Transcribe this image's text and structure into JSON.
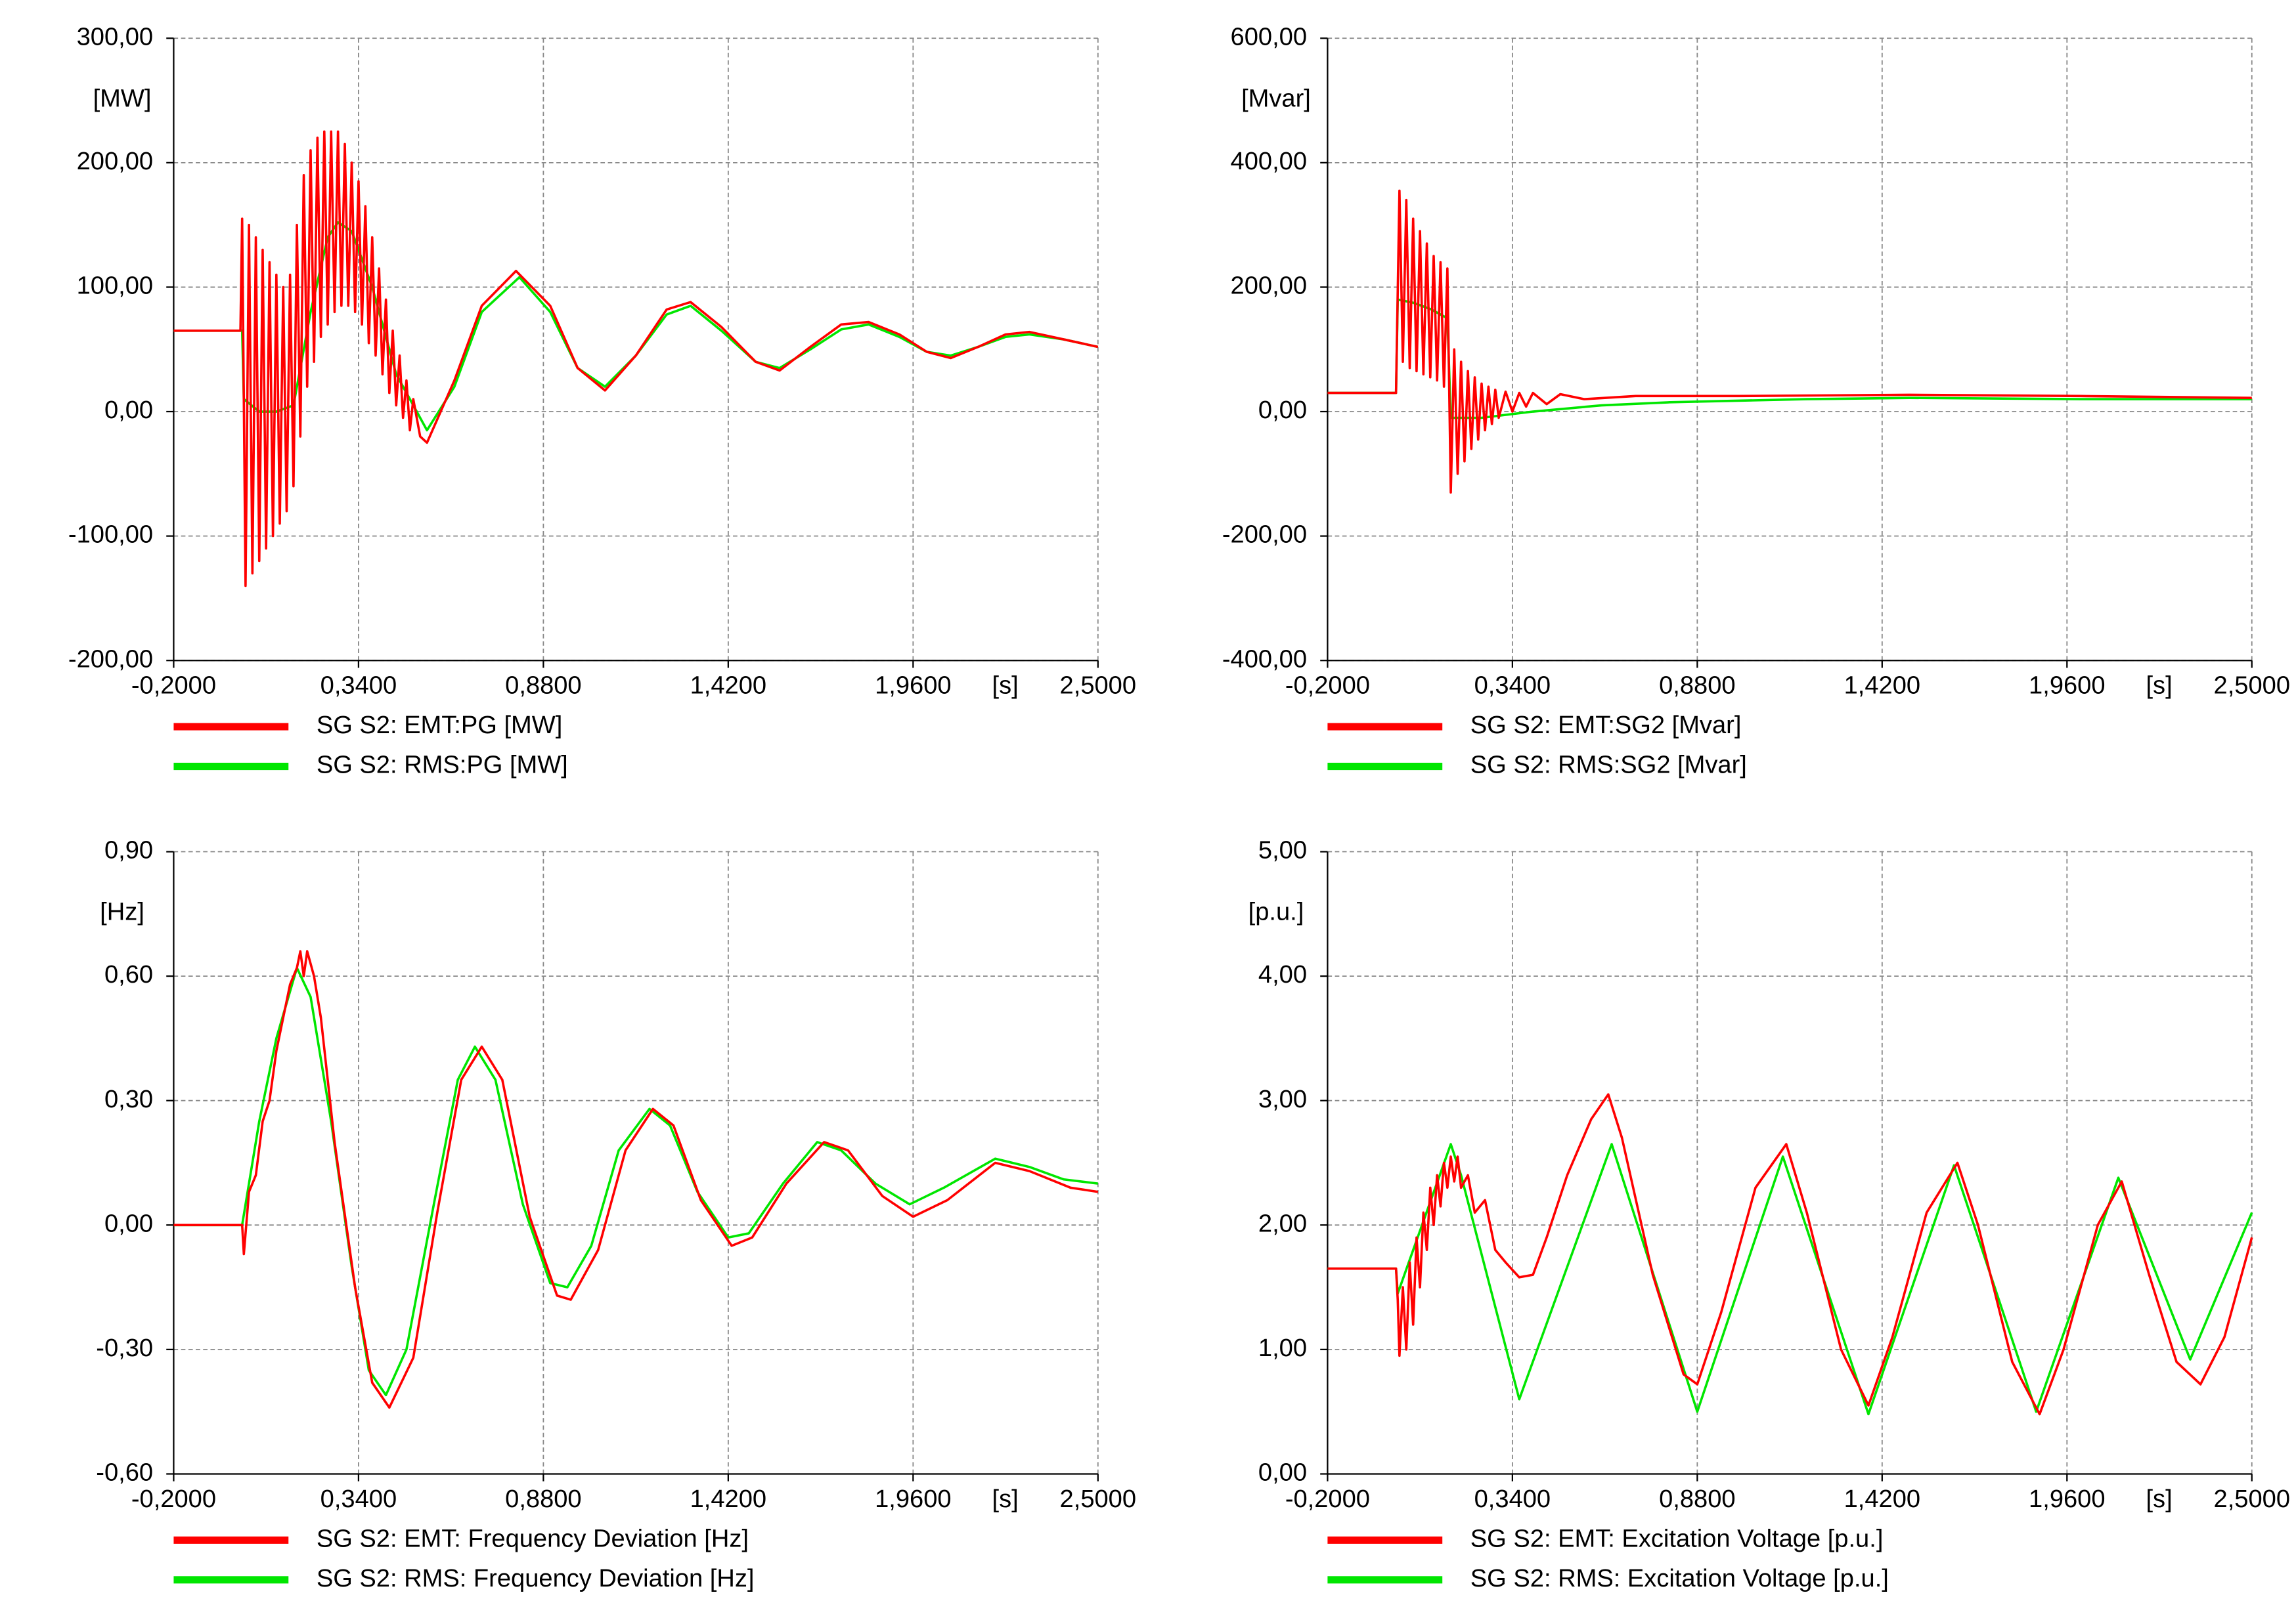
{
  "chart_data": [
    {
      "type": "line",
      "y_label": "[MW]",
      "x_label": "[s]",
      "xlim": [
        -0.2,
        2.5
      ],
      "xticks": [
        {
          "value": -0.2,
          "label": "-0,2000"
        },
        {
          "value": 0.34,
          "label": "0,3400"
        },
        {
          "value": 0.88,
          "label": "0,8800"
        },
        {
          "value": 1.42,
          "label": "1,4200"
        },
        {
          "value": 1.96,
          "label": "1,9600"
        },
        {
          "value": 2.5,
          "label": "2,5000"
        }
      ],
      "ylim": [
        -200,
        300
      ],
      "yticks": [
        {
          "value": -200,
          "label": "-200,00"
        },
        {
          "value": -100,
          "label": "-100,00"
        },
        {
          "value": 0,
          "label": "0,00"
        },
        {
          "value": 100,
          "label": "100,00"
        },
        {
          "value": 200,
          "label": "200,00"
        },
        {
          "value": 300,
          "label": "300,00"
        }
      ],
      "grid": true,
      "legend": "below",
      "series": [
        {
          "name": "SG S2: EMT:PG [MW]",
          "color": "#ff0000",
          "x": [
            -0.2,
            -0.005,
            0.0,
            0.01,
            0.02,
            0.03,
            0.04,
            0.05,
            0.06,
            0.07,
            0.08,
            0.09,
            0.1,
            0.11,
            0.12,
            0.13,
            0.14,
            0.15,
            0.16,
            0.17,
            0.18,
            0.19,
            0.2,
            0.21,
            0.22,
            0.23,
            0.24,
            0.25,
            0.26,
            0.27,
            0.28,
            0.29,
            0.3,
            0.31,
            0.32,
            0.33,
            0.34,
            0.35,
            0.36,
            0.37,
            0.38,
            0.39,
            0.4,
            0.41,
            0.42,
            0.43,
            0.44,
            0.45,
            0.46,
            0.47,
            0.48,
            0.49,
            0.5,
            0.52,
            0.54,
            0.62,
            0.7,
            0.8,
            0.9,
            0.98,
            1.06,
            1.15,
            1.24,
            1.31,
            1.4,
            1.5,
            1.57,
            1.66,
            1.75,
            1.83,
            1.92,
            2.0,
            2.07,
            2.15,
            2.23,
            2.3,
            2.4,
            2.5
          ],
          "values": [
            65,
            65,
            155,
            -140,
            150,
            -130,
            140,
            -120,
            130,
            -110,
            120,
            -100,
            110,
            -90,
            100,
            -80,
            110,
            -60,
            150,
            -20,
            190,
            20,
            210,
            40,
            220,
            60,
            225,
            70,
            225,
            80,
            225,
            85,
            215,
            85,
            200,
            80,
            185,
            70,
            165,
            55,
            140,
            45,
            115,
            30,
            90,
            15,
            65,
            5,
            45,
            -5,
            25,
            -15,
            10,
            -20,
            -25,
            25,
            85,
            113,
            85,
            35,
            17,
            45,
            82,
            88,
            68,
            40,
            33,
            52,
            70,
            72,
            62,
            48,
            43,
            52,
            62,
            64,
            58,
            52
          ]
        },
        {
          "name": "SG S2: RMS:PG [MW]",
          "color": "#00e600",
          "x": [
            -0.2,
            0.0,
            0.005,
            0.05,
            0.1,
            0.15,
            0.2,
            0.25,
            0.28,
            0.32,
            0.38,
            0.45,
            0.54,
            0.62,
            0.7,
            0.81,
            0.9,
            0.98,
            1.06,
            1.15,
            1.24,
            1.31,
            1.4,
            1.5,
            1.57,
            1.66,
            1.75,
            1.83,
            1.92,
            2.0,
            2.07,
            2.15,
            2.23,
            2.3,
            2.4,
            2.5
          ],
          "values": [
            65,
            65,
            10,
            0,
            0,
            5,
            80,
            140,
            152,
            145,
            100,
            30,
            -15,
            20,
            80,
            108,
            80,
            35,
            20,
            45,
            78,
            85,
            65,
            40,
            35,
            50,
            66,
            70,
            60,
            48,
            45,
            52,
            60,
            62,
            58,
            52
          ]
        }
      ]
    },
    {
      "type": "line",
      "y_label": "[Mvar]",
      "x_label": "[s]",
      "xlim": [
        -0.2,
        2.5
      ],
      "xticks": [
        {
          "value": -0.2,
          "label": "-0,2000"
        },
        {
          "value": 0.34,
          "label": "0,3400"
        },
        {
          "value": 0.88,
          "label": "0,8800"
        },
        {
          "value": 1.42,
          "label": "1,4200"
        },
        {
          "value": 1.96,
          "label": "1,9600"
        },
        {
          "value": 2.5,
          "label": "2,5000"
        }
      ],
      "ylim": [
        -400,
        600
      ],
      "yticks": [
        {
          "value": -400,
          "label": "-400,00"
        },
        {
          "value": -200,
          "label": "-200,00"
        },
        {
          "value": 0,
          "label": "0,00"
        },
        {
          "value": 200,
          "label": "200,00"
        },
        {
          "value": 400,
          "label": "400,00"
        },
        {
          "value": 600,
          "label": "600,00"
        }
      ],
      "grid": true,
      "legend": "below",
      "series": [
        {
          "name": "SG S2: EMT:SG2 [Mvar]",
          "color": "#ff0000",
          "x": [
            -0.2,
            0.0,
            0.01,
            0.02,
            0.03,
            0.04,
            0.05,
            0.06,
            0.07,
            0.08,
            0.09,
            0.1,
            0.11,
            0.12,
            0.13,
            0.14,
            0.15,
            0.16,
            0.17,
            0.18,
            0.19,
            0.2,
            0.21,
            0.22,
            0.23,
            0.24,
            0.25,
            0.26,
            0.27,
            0.28,
            0.29,
            0.3,
            0.32,
            0.34,
            0.36,
            0.38,
            0.4,
            0.44,
            0.48,
            0.55,
            0.7,
            1.0,
            1.5,
            2.0,
            2.5
          ],
          "values": [
            30,
            30,
            355,
            80,
            340,
            70,
            310,
            65,
            290,
            60,
            270,
            55,
            250,
            50,
            240,
            40,
            230,
            -130,
            100,
            -100,
            80,
            -80,
            65,
            -60,
            55,
            -45,
            45,
            -30,
            40,
            -20,
            35,
            -10,
            32,
            0,
            30,
            8,
            30,
            12,
            28,
            20,
            25,
            25,
            27,
            25,
            22
          ]
        },
        {
          "name": "SG S2: RMS:SG2 [Mvar]",
          "color": "#00e600",
          "x": [
            -0.2,
            0.0,
            0.005,
            0.05,
            0.1,
            0.15,
            0.16,
            0.25,
            0.4,
            0.6,
            0.8,
            1.2,
            1.5,
            2.0,
            2.5
          ],
          "values": [
            30,
            30,
            180,
            175,
            165,
            150,
            -10,
            -10,
            0,
            10,
            15,
            20,
            22,
            20,
            20
          ]
        }
      ]
    },
    {
      "type": "line",
      "y_label": "[Hz]",
      "x_label": "[s]",
      "xlim": [
        -0.2,
        2.5
      ],
      "xticks": [
        {
          "value": -0.2,
          "label": "-0,2000"
        },
        {
          "value": 0.34,
          "label": "0,3400"
        },
        {
          "value": 0.88,
          "label": "0,8800"
        },
        {
          "value": 1.42,
          "label": "1,4200"
        },
        {
          "value": 1.96,
          "label": "1,9600"
        },
        {
          "value": 2.5,
          "label": "2,5000"
        }
      ],
      "ylim": [
        -0.6,
        0.9
      ],
      "yticks": [
        {
          "value": -0.6,
          "label": "-0,60"
        },
        {
          "value": -0.3,
          "label": "-0,30"
        },
        {
          "value": 0,
          "label": "0,00"
        },
        {
          "value": 0.3,
          "label": "0,30"
        },
        {
          "value": 0.6,
          "label": "0,60"
        },
        {
          "value": 0.9,
          "label": "0,90"
        }
      ],
      "grid": true,
      "legend": "below",
      "series": [
        {
          "name": "SG S2: EMT: Frequency Deviation [Hz]",
          "color": "#ff0000",
          "x": [
            -0.2,
            0.0,
            0.005,
            0.02,
            0.04,
            0.06,
            0.08,
            0.1,
            0.12,
            0.14,
            0.16,
            0.17,
            0.18,
            0.19,
            0.21,
            0.23,
            0.27,
            0.33,
            0.38,
            0.43,
            0.5,
            0.57,
            0.64,
            0.7,
            0.76,
            0.84,
            0.92,
            0.96,
            1.04,
            1.12,
            1.2,
            1.26,
            1.34,
            1.43,
            1.49,
            1.59,
            1.7,
            1.77,
            1.87,
            1.96,
            2.06,
            2.2,
            2.3,
            2.42,
            2.5
          ],
          "values": [
            0,
            0,
            -0.07,
            0.08,
            0.12,
            0.25,
            0.3,
            0.42,
            0.5,
            0.58,
            0.62,
            0.66,
            0.6,
            0.66,
            0.6,
            0.5,
            0.2,
            -0.15,
            -0.38,
            -0.44,
            -0.32,
            0.03,
            0.35,
            0.43,
            0.35,
            0.02,
            -0.17,
            -0.18,
            -0.06,
            0.18,
            0.28,
            0.24,
            0.06,
            -0.05,
            -0.03,
            0.1,
            0.2,
            0.18,
            0.07,
            0.02,
            0.06,
            0.15,
            0.13,
            0.09,
            0.08
          ]
        },
        {
          "name": "SG S2: RMS: Frequency Deviation [Hz]",
          "color": "#00e600",
          "x": [
            -0.2,
            0.0,
            0.05,
            0.1,
            0.16,
            0.2,
            0.26,
            0.32,
            0.37,
            0.42,
            0.48,
            0.56,
            0.63,
            0.68,
            0.74,
            0.82,
            0.9,
            0.95,
            1.02,
            1.1,
            1.19,
            1.25,
            1.33,
            1.42,
            1.48,
            1.58,
            1.68,
            1.75,
            1.85,
            1.95,
            2.05,
            2.2,
            2.3,
            2.4,
            2.5
          ],
          "values": [
            0,
            0,
            0.25,
            0.45,
            0.62,
            0.55,
            0.25,
            -0.1,
            -0.35,
            -0.41,
            -0.3,
            0.05,
            0.35,
            0.43,
            0.35,
            0.05,
            -0.14,
            -0.15,
            -0.05,
            0.18,
            0.28,
            0.24,
            0.08,
            -0.03,
            -0.02,
            0.1,
            0.2,
            0.18,
            0.1,
            0.05,
            0.09,
            0.16,
            0.14,
            0.11,
            0.1
          ]
        }
      ]
    },
    {
      "type": "line",
      "y_label": "[p.u.]",
      "x_label": "[s]",
      "xlim": [
        -0.2,
        2.5
      ],
      "xticks": [
        {
          "value": -0.2,
          "label": "-0,2000"
        },
        {
          "value": 0.34,
          "label": "0,3400"
        },
        {
          "value": 0.88,
          "label": "0,8800"
        },
        {
          "value": 1.42,
          "label": "1,4200"
        },
        {
          "value": 1.96,
          "label": "1,9600"
        },
        {
          "value": 2.5,
          "label": "2,5000"
        }
      ],
      "ylim": [
        0,
        5
      ],
      "yticks": [
        {
          "value": 0,
          "label": "0,00"
        },
        {
          "value": 1,
          "label": "1,00"
        },
        {
          "value": 2,
          "label": "2,00"
        },
        {
          "value": 3,
          "label": "3,00"
        },
        {
          "value": 4,
          "label": "4,00"
        },
        {
          "value": 5,
          "label": "5,00"
        }
      ],
      "grid": true,
      "legend": "below",
      "series": [
        {
          "name": "SG S2: EMT: Excitation Voltage [p.u.]",
          "color": "#ff0000",
          "x": [
            -0.2,
            0.0,
            0.005,
            0.01,
            0.02,
            0.03,
            0.04,
            0.05,
            0.06,
            0.07,
            0.08,
            0.09,
            0.1,
            0.11,
            0.12,
            0.13,
            0.14,
            0.15,
            0.16,
            0.17,
            0.18,
            0.19,
            0.21,
            0.23,
            0.26,
            0.29,
            0.32,
            0.36,
            0.4,
            0.44,
            0.5,
            0.57,
            0.62,
            0.66,
            0.75,
            0.84,
            0.88,
            0.95,
            1.05,
            1.14,
            1.2,
            1.3,
            1.38,
            1.45,
            1.55,
            1.64,
            1.7,
            1.8,
            1.88,
            1.95,
            2.05,
            2.12,
            2.2,
            2.28,
            2.35,
            2.42,
            2.5
          ],
          "values": [
            1.65,
            1.65,
            1.4,
            0.95,
            1.5,
            1.0,
            1.7,
            1.2,
            1.9,
            1.5,
            2.1,
            1.8,
            2.3,
            2.0,
            2.4,
            2.15,
            2.5,
            2.3,
            2.55,
            2.35,
            2.55,
            2.3,
            2.4,
            2.1,
            2.2,
            1.8,
            1.7,
            1.58,
            1.6,
            1.9,
            2.4,
            2.85,
            3.05,
            2.7,
            1.6,
            0.8,
            0.72,
            1.3,
            2.3,
            2.65,
            2.1,
            1.0,
            0.55,
            1.1,
            2.1,
            2.5,
            2.0,
            0.9,
            0.48,
            1.0,
            2.0,
            2.35,
            1.6,
            0.9,
            0.72,
            1.1,
            1.9
          ]
        },
        {
          "name": "SG S2: RMS: Excitation Voltage [p.u.]",
          "color": "#00e600",
          "x": [
            -0.2,
            0.0,
            0.005,
            0.16,
            0.19,
            0.36,
            0.63,
            0.88,
            1.13,
            1.38,
            1.63,
            1.87,
            2.11,
            2.32,
            2.5
          ],
          "values": [
            1.65,
            1.65,
            1.45,
            2.65,
            2.4,
            0.6,
            2.65,
            0.5,
            2.55,
            0.48,
            2.48,
            0.5,
            2.38,
            0.92,
            2.1
          ]
        }
      ]
    }
  ]
}
